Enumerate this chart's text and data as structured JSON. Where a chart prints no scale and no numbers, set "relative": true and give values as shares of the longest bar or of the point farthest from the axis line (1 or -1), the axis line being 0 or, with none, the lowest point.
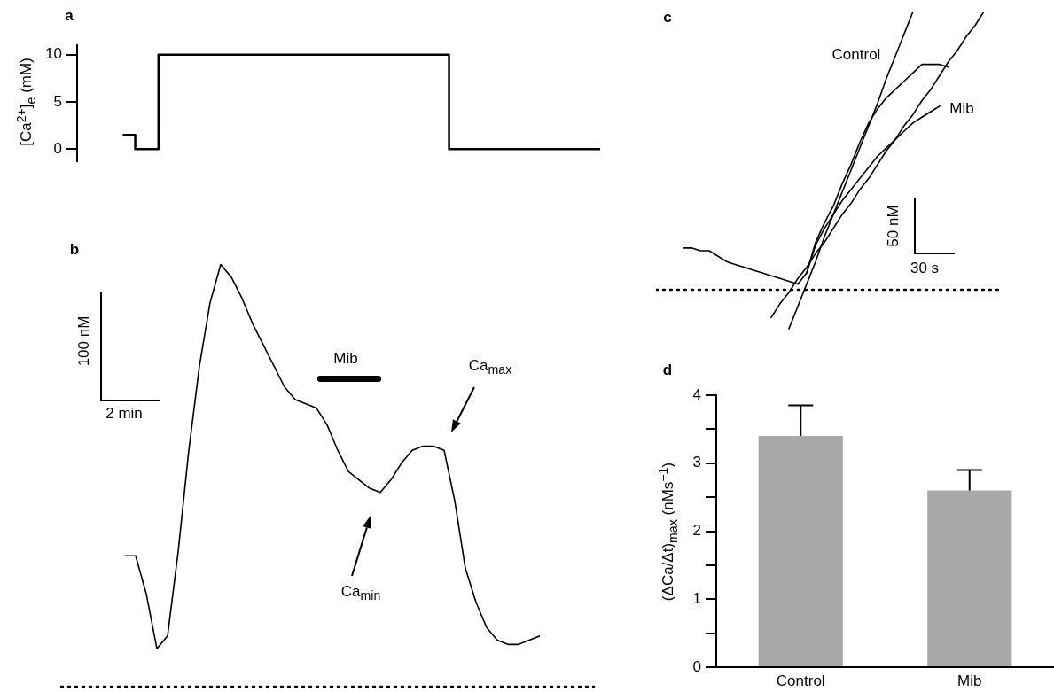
{
  "chart_data": [
    {
      "type": "step",
      "title": "a",
      "ylabel": "[Ca$^{2+}$]$_{e}$ (mM)",
      "categories": [
        null,
        null,
        null,
        null,
        null,
        null,
        null,
        null,
        null,
        null,
        null,
        null,
        null,
        null,
        null,
        null,
        null,
        null,
        null,
        null,
        null,
        null,
        null,
        null,
        null,
        null,
        null,
        null,
        null,
        null,
        null,
        null,
        null,
        null,
        null,
        null,
        null,
        null,
        null,
        null,
        null,
        null
      ],
      "values": [
        1.5,
        0,
        0,
        10,
        10,
        10,
        10,
        10,
        10,
        10,
        10,
        10,
        10,
        10,
        10,
        10,
        10,
        10,
        10,
        10,
        10,
        10,
        10,
        10,
        10,
        10,
        10,
        10,
        0,
        0,
        0,
        0,
        0,
        0,
        0,
        0,
        0,
        0,
        0,
        0,
        0,
        0
      ],
      "color": "#000000",
      "ylim": [
        -1.3,
        11
      ],
      "yticks": [
        0,
        5,
        10
      ],
      "tick_labels": "y"
    },
    {
      "type": "line",
      "title": "b",
      "relative": true,
      "categories": [
        null,
        null,
        null,
        null,
        null,
        null,
        null,
        null,
        null,
        null,
        null,
        null,
        null,
        null,
        null,
        null,
        null,
        null,
        null,
        null,
        null,
        null,
        null,
        null,
        null,
        null,
        null,
        null,
        null,
        null,
        null,
        null,
        null,
        null,
        null,
        null,
        null,
        null,
        null,
        null
      ],
      "values": [
        0.31,
        0.31,
        0.22,
        0.09,
        0.12,
        0.32,
        0.56,
        0.76,
        0.91,
        1.0,
        0.97,
        0.92,
        0.86,
        0.81,
        0.76,
        0.71,
        0.68,
        0.67,
        0.66,
        0.62,
        0.56,
        0.51,
        0.49,
        0.47,
        0.46,
        0.49,
        0.53,
        0.56,
        0.57,
        0.57,
        0.56,
        0.44,
        0.28,
        0.2,
        0.14,
        0.11,
        0.1,
        0.1,
        0.11,
        0.12
      ],
      "color": "#000000",
      "ref_lines": [
        {
          "axis": "y",
          "value": 0,
          "line_style": "dotted",
          "color": "#000000"
        }
      ],
      "annotations": [
        "100 nM",
        "2 min",
        "Mib",
        "Ca$_{max}$",
        "Ca$_{min}$"
      ],
      "tick_labels": false
    },
    {
      "type": "line",
      "title": "c",
      "relative": true,
      "categories": [
        null,
        null,
        null,
        null,
        null,
        null,
        null,
        null,
        null,
        null,
        null,
        null,
        null,
        null,
        null,
        null,
        null,
        null,
        null,
        null,
        null,
        null,
        null,
        null,
        null,
        null,
        null,
        null,
        null,
        null,
        null,
        null,
        null,
        null,
        null
      ],
      "series": [
        {
          "name": "Control",
          "color": "#000000",
          "values": [
            0.15,
            0.15,
            0.14,
            0.14,
            0.12,
            0.1,
            0.09,
            0.08,
            0.07,
            0.06,
            0.05,
            0.04,
            0.03,
            0.02,
            0.06,
            0.17,
            0.24,
            0.3,
            0.38,
            0.45,
            0.53,
            0.6,
            0.65,
            0.69,
            0.72,
            0.75,
            0.78,
            0.81,
            0.81,
            0.81,
            0.8,
            null,
            null,
            null,
            null
          ]
        },
        {
          "name": "Mib",
          "color": "#000000",
          "values": [
            null,
            null,
            null,
            null,
            null,
            null,
            null,
            null,
            null,
            null,
            null,
            null,
            null,
            null,
            0.06,
            0.16,
            0.22,
            0.27,
            0.32,
            0.36,
            0.4,
            0.44,
            0.48,
            0.51,
            0.54,
            0.57,
            0.6,
            0.62,
            0.64,
            0.66,
            null,
            null,
            null,
            null,
            null
          ]
        },
        {
          "type": "line",
          "color": "#000000",
          "values": [
            null,
            null,
            null,
            null,
            null,
            null,
            null,
            null,
            null,
            null,
            null,
            null,
            -0.14,
            -0.06,
            0.02,
            0.1,
            0.19,
            0.27,
            0.35,
            0.43,
            0.51,
            0.59,
            0.67,
            0.76,
            0.84,
            0.92,
            1.0,
            null,
            null,
            null,
            null,
            null,
            null,
            null,
            null
          ]
        },
        {
          "type": "line",
          "color": "#000000",
          "values": [
            null,
            null,
            null,
            null,
            null,
            null,
            null,
            null,
            null,
            null,
            -0.1,
            -0.05,
            -0.01,
            0.04,
            0.08,
            0.13,
            0.17,
            0.22,
            0.27,
            0.31,
            0.36,
            0.4,
            0.45,
            0.5,
            0.54,
            0.59,
            0.63,
            0.68,
            0.72,
            0.77,
            0.82,
            0.86,
            0.91,
            0.95,
            1.0
          ]
        }
      ],
      "ref_lines": [
        {
          "axis": "y",
          "value": 0,
          "line_style": "dotted",
          "color": "#000000"
        }
      ],
      "annotations": [
        "50 nM",
        "30 s"
      ],
      "tick_labels": false
    },
    {
      "type": "bar",
      "title": "d",
      "ylabel": "(ΔCa/Δt)$_{max}$ (nMs$^{−1}$)",
      "categories": [
        "Control",
        "Mib"
      ],
      "values": [
        3.4,
        2.6
      ],
      "errors": [
        0.45,
        0.3
      ],
      "color": "#a8a8a8",
      "ylim": [
        0,
        4
      ],
      "yticks": [
        0,
        {
          "value": 0.5,
          "label": null
        },
        1,
        {
          "value": 1.5,
          "label": null
        },
        2,
        {
          "value": 2.5,
          "label": null
        },
        3,
        {
          "value": 3.5,
          "label": null
        },
        4
      ]
    }
  ]
}
